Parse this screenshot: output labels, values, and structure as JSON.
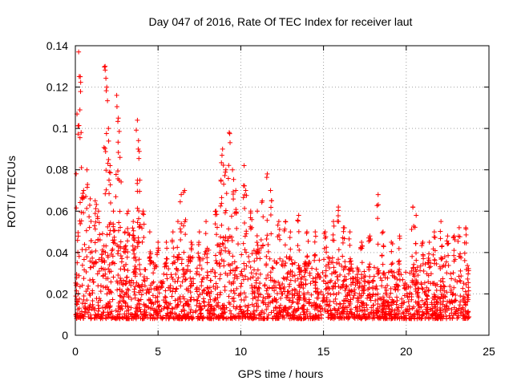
{
  "chart_data": {
    "type": "scatter",
    "title": "Day 047 of 2016, Rate Of TEC Index for receiver laut",
    "xlabel": "GPS time / hours",
    "ylabel": "ROTI / TECUs",
    "xlim": [
      0,
      25
    ],
    "ylim": [
      0,
      0.14
    ],
    "xticks": [
      0,
      5,
      10,
      15,
      20,
      25
    ],
    "xtick_labels": [
      "0",
      "5",
      "10",
      "15",
      "20",
      "25"
    ],
    "yticks": [
      0,
      0.02,
      0.04,
      0.06,
      0.08,
      0.1,
      0.12,
      0.14
    ],
    "ytick_labels": [
      "0",
      "0.02",
      "0.04",
      "0.06",
      "0.08",
      "0.1",
      "0.12",
      "0.14"
    ],
    "grid": true,
    "marker": "+",
    "color": "#ff0000",
    "data_coverage_hours": [
      0,
      23.8
    ],
    "series": [
      {
        "name": "ROTI",
        "envelope": [
          [
            0.0,
            0.03
          ],
          [
            0.5,
            0.035
          ],
          [
            1.0,
            0.045
          ],
          [
            1.5,
            0.045
          ],
          [
            2.0,
            0.05
          ],
          [
            2.5,
            0.04
          ],
          [
            3.0,
            0.04
          ],
          [
            3.5,
            0.045
          ],
          [
            4.0,
            0.04
          ],
          [
            4.5,
            0.035
          ],
          [
            5.0,
            0.03
          ],
          [
            5.5,
            0.032
          ],
          [
            6.0,
            0.035
          ],
          [
            6.5,
            0.035
          ],
          [
            7.0,
            0.035
          ],
          [
            7.5,
            0.035
          ],
          [
            8.0,
            0.038
          ],
          [
            8.5,
            0.04
          ],
          [
            9.0,
            0.045
          ],
          [
            9.5,
            0.045
          ],
          [
            10.0,
            0.04
          ],
          [
            10.5,
            0.04
          ],
          [
            11.0,
            0.04
          ],
          [
            11.5,
            0.038
          ],
          [
            12.0,
            0.035
          ],
          [
            12.5,
            0.033
          ],
          [
            13.0,
            0.033
          ],
          [
            13.5,
            0.033
          ],
          [
            14.0,
            0.033
          ],
          [
            14.5,
            0.035
          ],
          [
            15.0,
            0.035
          ],
          [
            15.5,
            0.035
          ],
          [
            16.0,
            0.035
          ],
          [
            16.5,
            0.033
          ],
          [
            17.0,
            0.03
          ],
          [
            17.5,
            0.03
          ],
          [
            18.0,
            0.03
          ],
          [
            18.5,
            0.03
          ],
          [
            19.0,
            0.028
          ],
          [
            19.5,
            0.028
          ],
          [
            20.0,
            0.028
          ],
          [
            20.5,
            0.03
          ],
          [
            21.0,
            0.032
          ],
          [
            21.5,
            0.033
          ],
          [
            22.0,
            0.035
          ],
          [
            22.5,
            0.035
          ],
          [
            23.0,
            0.035
          ],
          [
            23.5,
            0.035
          ],
          [
            23.8,
            0.03
          ]
        ],
        "peaks": [
          [
            0.1,
            0.107
          ],
          [
            0.2,
            0.137
          ],
          [
            0.3,
            0.125
          ],
          [
            0.35,
            0.098
          ],
          [
            0.5,
            0.07
          ],
          [
            0.7,
            0.08
          ],
          [
            0.9,
            0.066
          ],
          [
            1.2,
            0.065
          ],
          [
            1.4,
            0.06
          ],
          [
            1.8,
            0.13
          ],
          [
            1.9,
            0.12
          ],
          [
            2.0,
            0.1
          ],
          [
            2.1,
            0.082
          ],
          [
            2.3,
            0.06
          ],
          [
            2.5,
            0.116
          ],
          [
            2.6,
            0.105
          ],
          [
            2.7,
            0.086
          ],
          [
            3.0,
            0.05
          ],
          [
            3.2,
            0.06
          ],
          [
            3.5,
            0.055
          ],
          [
            3.75,
            0.104
          ],
          [
            3.8,
            0.09
          ],
          [
            3.9,
            0.075
          ],
          [
            4.1,
            0.06
          ],
          [
            4.5,
            0.05
          ],
          [
            5.0,
            0.045
          ],
          [
            5.5,
            0.045
          ],
          [
            5.9,
            0.05
          ],
          [
            6.2,
            0.055
          ],
          [
            6.4,
            0.068
          ],
          [
            6.6,
            0.07
          ],
          [
            7.0,
            0.045
          ],
          [
            7.5,
            0.05
          ],
          [
            7.9,
            0.055
          ],
          [
            8.5,
            0.06
          ],
          [
            8.8,
            0.075
          ],
          [
            8.9,
            0.09
          ],
          [
            9.1,
            0.08
          ],
          [
            9.3,
            0.098
          ],
          [
            9.5,
            0.08
          ],
          [
            9.7,
            0.07
          ],
          [
            10.2,
            0.082
          ],
          [
            10.3,
            0.07
          ],
          [
            10.6,
            0.06
          ],
          [
            11.0,
            0.06
          ],
          [
            11.3,
            0.065
          ],
          [
            11.6,
            0.078
          ],
          [
            11.8,
            0.07
          ],
          [
            12.3,
            0.055
          ],
          [
            12.7,
            0.055
          ],
          [
            13.0,
            0.05
          ],
          [
            13.5,
            0.058
          ],
          [
            14.0,
            0.05
          ],
          [
            14.5,
            0.05
          ],
          [
            15.1,
            0.05
          ],
          [
            15.6,
            0.055
          ],
          [
            15.9,
            0.062
          ],
          [
            16.2,
            0.052
          ],
          [
            16.6,
            0.05
          ],
          [
            17.3,
            0.045
          ],
          [
            17.8,
            0.048
          ],
          [
            18.3,
            0.068
          ],
          [
            18.6,
            0.05
          ],
          [
            19.1,
            0.045
          ],
          [
            19.6,
            0.048
          ],
          [
            20.4,
            0.062
          ],
          [
            20.6,
            0.058
          ],
          [
            21.0,
            0.045
          ],
          [
            21.4,
            0.045
          ],
          [
            21.7,
            0.05
          ],
          [
            22.1,
            0.055
          ],
          [
            22.5,
            0.048
          ],
          [
            22.9,
            0.048
          ],
          [
            23.2,
            0.052
          ],
          [
            23.6,
            0.052
          ]
        ],
        "floor": 0.005
      }
    ]
  }
}
